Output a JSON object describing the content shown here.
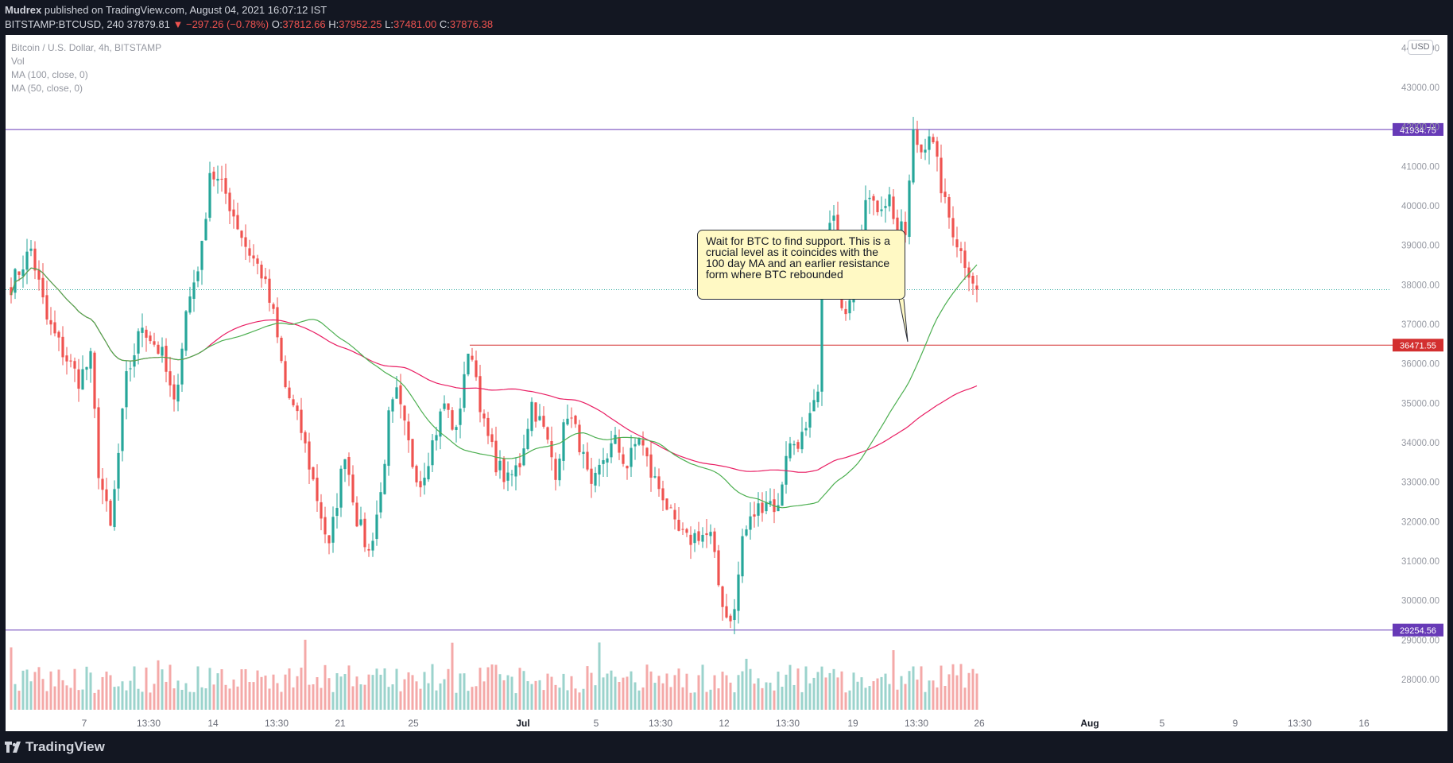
{
  "header": {
    "publisher": "Mudrex",
    "published_text": "published on TradingView.com, August 04, 2021 16:07:12 IST",
    "symbol": "BITSTAMP:BTCUSD, 240",
    "last": "37879.81",
    "change": "▼ −297.26 (−0.78%)",
    "open_label": "O:",
    "open": "37812.66",
    "high_label": "H:",
    "high": "37952.25",
    "low_label": "L:",
    "low": "37481.00",
    "close_label": "C:",
    "close": "37876.38"
  },
  "legend": {
    "title": "Bitcoin / U.S. Dollar, 4h, BITSTAMP",
    "vol": "Vol",
    "ma100": "MA (100, close, 0)",
    "ma50": "MA (50, close, 0)"
  },
  "currency_badge": "USD",
  "annotation": "Wait for BTC to find support. This is a crucial level as it coincides with the 100 day MA and an earlier resistance form where BTC rebounded",
  "footer": {
    "logo_text": "TradingView"
  },
  "colors": {
    "up": "#26a69a",
    "down": "#ef5350",
    "ma50": "#4caf50",
    "ma100": "#e91e63",
    "level_purple": "#673ab7",
    "level_red": "#d32f2f"
  },
  "chart_data": {
    "type": "candlestick",
    "title": "Bitcoin / U.S. Dollar, 4h, BITSTAMP",
    "y_axis": {
      "ticks": [
        44000,
        43000,
        42000,
        41000,
        40000,
        39000,
        38000,
        37000,
        36000,
        35000,
        34000,
        33000,
        32000,
        31000,
        30000,
        29000,
        28000
      ],
      "tick_labels": [
        "44000.00",
        "43000.00",
        "42000.00",
        "41000.00",
        "40000.00",
        "39000.00",
        "38000.00",
        "37000.00",
        "36000.00",
        "35000.00",
        "34000.00",
        "33000.00",
        "32000.00",
        "31000.00",
        "30000.00",
        "29000.00",
        "28000.00"
      ],
      "range": [
        27500,
        44300
      ]
    },
    "x_axis": {
      "tick_labels": [
        "7",
        "13:30",
        "14",
        "13:30",
        "21",
        "25",
        "Jul",
        "5",
        "13:30",
        "12",
        "13:30",
        "19",
        "13:30",
        "26",
        "Aug",
        "5",
        "9",
        "13:30",
        "16"
      ],
      "bold_labels": [
        "Jul",
        "Aug"
      ]
    },
    "levels": [
      {
        "value": 41934.75,
        "label": "41934.75",
        "color": "#673ab7",
        "span": "full"
      },
      {
        "value": 36471.55,
        "label": "36471.55",
        "color": "#d32f2f",
        "span": "from late June"
      },
      {
        "value": 29254.56,
        "label": "29254.56",
        "color": "#673ab7",
        "span": "full"
      }
    ],
    "last_price": 37876.38,
    "waypoints_close": [
      [
        0,
        38000
      ],
      [
        5,
        38900
      ],
      [
        9,
        37100
      ],
      [
        13,
        36300
      ],
      [
        17,
        35600
      ],
      [
        20,
        36100
      ],
      [
        22,
        33300
      ],
      [
        25,
        31800
      ],
      [
        29,
        35600
      ],
      [
        33,
        37000
      ],
      [
        38,
        36200
      ],
      [
        41,
        34900
      ],
      [
        44,
        37300
      ],
      [
        48,
        38900
      ],
      [
        50,
        40900
      ],
      [
        54,
        40300
      ],
      [
        59,
        39000
      ],
      [
        63,
        38300
      ],
      [
        66,
        37200
      ],
      [
        69,
        35400
      ],
      [
        73,
        34300
      ],
      [
        77,
        32600
      ],
      [
        80,
        31300
      ],
      [
        84,
        33800
      ],
      [
        87,
        32100
      ],
      [
        90,
        31200
      ],
      [
        93,
        32700
      ],
      [
        95,
        34600
      ],
      [
        97,
        35200
      ],
      [
        101,
        33500
      ],
      [
        103,
        33000
      ],
      [
        106,
        34000
      ],
      [
        109,
        35000
      ],
      [
        112,
        34200
      ],
      [
        114,
        35800
      ],
      [
        116,
        36300
      ],
      [
        119,
        34400
      ],
      [
        122,
        33500
      ],
      [
        125,
        33000
      ],
      [
        128,
        33500
      ],
      [
        131,
        35000
      ],
      [
        134,
        34300
      ],
      [
        137,
        33300
      ],
      [
        140,
        34800
      ],
      [
        143,
        34000
      ],
      [
        146,
        32700
      ],
      [
        149,
        33600
      ],
      [
        152,
        34000
      ],
      [
        155,
        33400
      ],
      [
        158,
        34200
      ],
      [
        161,
        33200
      ],
      [
        164,
        32700
      ],
      [
        167,
        31800
      ],
      [
        170,
        31500
      ],
      [
        173,
        31700
      ],
      [
        176,
        31600
      ],
      [
        178,
        30400
      ],
      [
        180,
        29600
      ],
      [
        182,
        29700
      ],
      [
        184,
        31600
      ],
      [
        187,
        32200
      ],
      [
        190,
        32600
      ],
      [
        193,
        32300
      ],
      [
        195,
        33800
      ],
      [
        197,
        34000
      ],
      [
        200,
        34200
      ],
      [
        203,
        35200
      ],
      [
        204,
        38900
      ],
      [
        207,
        39700
      ],
      [
        209,
        37200
      ],
      [
        211,
        37800
      ],
      [
        213,
        38400
      ],
      [
        215,
        40400
      ],
      [
        217,
        39900
      ],
      [
        219,
        40100
      ],
      [
        221,
        40200
      ],
      [
        223,
        39400
      ],
      [
        225,
        39300
      ],
      [
        227,
        41800
      ],
      [
        229,
        41400
      ],
      [
        231,
        41900
      ],
      [
        233,
        41000
      ],
      [
        235,
        40000
      ],
      [
        237,
        39400
      ],
      [
        239,
        38800
      ],
      [
        241,
        38400
      ],
      [
        243,
        37900
      ]
    ],
    "volume_baseline": 27600,
    "ma_periods": [
      50,
      100
    ]
  }
}
